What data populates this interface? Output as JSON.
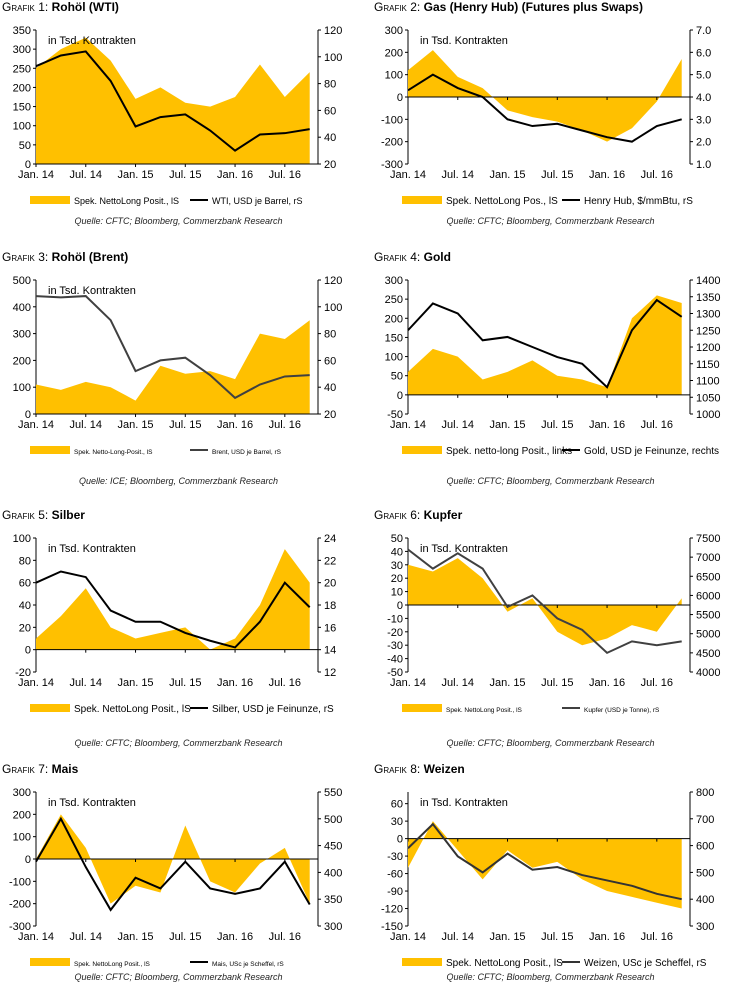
{
  "charts": [
    {
      "prefix": "Grafik",
      "number": "1:",
      "name": "Rohöl (WTI)",
      "unit_label": "in Tsd. Kontrakten",
      "source": "Quelle: CFTC; Bloomberg, Commerzbank Research",
      "legend_area": "Spek. NettoLong Posit., lS",
      "legend_line": "WTI, USD je Barrel, rS",
      "legend_font": 9,
      "colors": {
        "area": "#FFC000",
        "line": "#000000"
      }
    },
    {
      "prefix": "Grafik",
      "number": "2:",
      "name": "Gas (Henry Hub) (Futures plus Swaps)",
      "unit_label": "in Tsd. Kontrakten",
      "source": "Quelle: CFTC; Bloomberg, Commerzbank Research",
      "legend_area": "Spek. NettoLong Pos., lS",
      "legend_line": "Henry Hub, $/mmBtu, rS",
      "legend_font": 10,
      "colors": {
        "area": "#FFC000",
        "line": "#000000"
      }
    },
    {
      "prefix": "Grafik",
      "number": "3:",
      "name": "Rohöl (Brent)",
      "unit_label": "in Tsd. Kontrakten",
      "source": "Quelle: ICE; Bloomberg, Commerzbank Research",
      "legend_area": "Spek. Netto-Long-Posit., lS",
      "legend_line": "Brent, USD je Barrel, rS",
      "legend_font": 6.5,
      "colors": {
        "area": "#FFC000",
        "line": "#404040"
      }
    },
    {
      "prefix": "Grafik",
      "number": "4:",
      "name": "Gold",
      "unit_label": "",
      "source": "Quelle: CFTC; Bloomberg, Commerzbank Research",
      "legend_area": "Spek. netto-long Posit., links",
      "legend_line": "Gold, USD je Feinunze, rechts",
      "legend_font": 10,
      "colors": {
        "area": "#FFC000",
        "line": "#000000"
      }
    },
    {
      "prefix": "Grafik",
      "number": "5:",
      "name": "Silber",
      "unit_label": "in Tsd. Kontrakten",
      "source": "Quelle: CFTC; Bloomberg, Commerzbank Research",
      "legend_area": "Spek. NettoLong Posit., lS",
      "legend_line": "Silber, USD je Feinunze, rS",
      "legend_font": 10,
      "colors": {
        "area": "#FFC000",
        "line": "#000000"
      }
    },
    {
      "prefix": "Grafik",
      "number": "6:",
      "name": "Kupfer",
      "unit_label": "in Tsd. Kontrakten",
      "source": "Quelle: CFTC; Bloomberg, Commerzbank Research",
      "legend_area": "Spek. NettoLong Posit., lS",
      "legend_line": "Kupfer (USD je Tonne), rS",
      "legend_font": 6.5,
      "colors": {
        "area": "#FFC000",
        "line": "#404040"
      }
    },
    {
      "prefix": "Grafik",
      "number": "7:",
      "name": "Mais",
      "unit_label": "in Tsd. Kontrakten",
      "source": "Quelle: CFTC; Bloomberg, Commerzbank Research",
      "legend_area": "Spek. NettoLong Posit., lS",
      "legend_line": "Mais, USc je Scheffel, rS",
      "legend_font": 6.5,
      "colors": {
        "area": "#FFC000",
        "line": "#000000"
      }
    },
    {
      "prefix": "Grafik",
      "number": "8:",
      "name": "Weizen",
      "unit_label": "in Tsd. Kontrakten",
      "source": "Quelle: CFTC; Bloomberg, Commerzbank Research",
      "legend_area": "Spek. NettoLong Posit., lS",
      "legend_line": "Weizen, USc je Scheffel, rS",
      "legend_font": 10,
      "colors": {
        "area": "#FFC000",
        "line": "#333333"
      }
    }
  ],
  "chart_data": [
    {
      "type": "area",
      "title": "Grafik 1: Rohöl (WTI)",
      "x_ticks": [
        "Jan. 14",
        "Jul. 14",
        "Jan. 15",
        "Jul. 15",
        "Jan. 16",
        "Jul. 16"
      ],
      "x": [
        "2014-01",
        "2014-04",
        "2014-07",
        "2014-10",
        "2015-01",
        "2015-04",
        "2015-07",
        "2015-10",
        "2016-01",
        "2016-04",
        "2016-07",
        "2016-10"
      ],
      "y_left": {
        "label": "in Tsd. Kontrakten",
        "range": [
          0,
          350
        ],
        "ticks": [
          0,
          50,
          100,
          150,
          200,
          250,
          300,
          350
        ]
      },
      "y_right": {
        "range": [
          20,
          120
        ],
        "ticks": [
          20,
          40,
          60,
          80,
          100,
          120
        ]
      },
      "series": [
        {
          "name": "Spek. NettoLong Posit., lS",
          "axis": "left",
          "type": "area",
          "values": [
            250,
            300,
            330,
            270,
            170,
            200,
            160,
            150,
            175,
            260,
            175,
            240
          ]
        },
        {
          "name": "WTI, USD je Barrel, rS",
          "axis": "right",
          "type": "line",
          "values": [
            93,
            101,
            104,
            82,
            48,
            55,
            57,
            45,
            30,
            42,
            43,
            46
          ]
        }
      ]
    },
    {
      "type": "area",
      "title": "Grafik 2: Gas (Henry Hub) (Futures plus Swaps)",
      "x_ticks": [
        "Jan. 14",
        "Jul. 14",
        "Jan. 15",
        "Jul. 15",
        "Jan. 16",
        "Jul. 16"
      ],
      "x": [
        "2014-01",
        "2014-04",
        "2014-07",
        "2014-10",
        "2015-01",
        "2015-04",
        "2015-07",
        "2015-10",
        "2016-01",
        "2016-04",
        "2016-07",
        "2016-10"
      ],
      "y_left": {
        "label": "in Tsd. Kontrakten",
        "range": [
          -300,
          300
        ],
        "ticks": [
          -300,
          -200,
          -100,
          0,
          100,
          200,
          300
        ]
      },
      "y_right": {
        "range": [
          1.0,
          7.0
        ],
        "ticks": [
          1.0,
          2.0,
          3.0,
          4.0,
          5.0,
          6.0,
          7.0
        ]
      },
      "series": [
        {
          "name": "Spek. NettoLong Pos., lS",
          "axis": "left",
          "type": "area",
          "values": [
            120,
            210,
            90,
            40,
            -60,
            -90,
            -110,
            -150,
            -200,
            -140,
            -20,
            170
          ]
        },
        {
          "name": "Henry Hub, $/mmBtu, rS",
          "axis": "right",
          "type": "line",
          "values": [
            4.3,
            5.0,
            4.4,
            4.0,
            3.0,
            2.7,
            2.8,
            2.5,
            2.2,
            2.0,
            2.7,
            3.0
          ]
        }
      ]
    },
    {
      "type": "area",
      "title": "Grafik 3: Rohöl (Brent)",
      "x_ticks": [
        "Jan. 14",
        "Jul. 14",
        "Jan. 15",
        "Jul. 15",
        "Jan. 16",
        "Jul. 16"
      ],
      "x": [
        "2014-01",
        "2014-04",
        "2014-07",
        "2014-10",
        "2015-01",
        "2015-04",
        "2015-07",
        "2015-10",
        "2016-01",
        "2016-04",
        "2016-07",
        "2016-10"
      ],
      "y_left": {
        "label": "in Tsd. Kontrakten",
        "range": [
          0,
          500
        ],
        "ticks": [
          0,
          100,
          200,
          300,
          400,
          500
        ]
      },
      "y_right": {
        "range": [
          20,
          120
        ],
        "ticks": [
          20,
          40,
          60,
          80,
          100,
          120
        ]
      },
      "series": [
        {
          "name": "Spek. Netto-Long-Posit., lS",
          "axis": "left",
          "type": "area",
          "values": [
            110,
            90,
            120,
            100,
            50,
            180,
            150,
            160,
            130,
            300,
            280,
            350
          ]
        },
        {
          "name": "Brent, USD je Barrel, rS",
          "axis": "right",
          "type": "line",
          "values": [
            108,
            107,
            108,
            90,
            52,
            60,
            62,
            49,
            32,
            42,
            48,
            49
          ]
        }
      ]
    },
    {
      "type": "area",
      "title": "Grafik 4: Gold",
      "x_ticks": [
        "Jan. 14",
        "Jul. 14",
        "Jan. 15",
        "Jul. 15",
        "Jan. 16",
        "Jul. 16"
      ],
      "x": [
        "2014-01",
        "2014-04",
        "2014-07",
        "2014-10",
        "2015-01",
        "2015-04",
        "2015-07",
        "2015-10",
        "2016-01",
        "2016-04",
        "2016-07",
        "2016-10"
      ],
      "y_left": {
        "range": [
          -50,
          300
        ],
        "ticks": [
          -50,
          0,
          50,
          100,
          150,
          200,
          250,
          300
        ]
      },
      "y_right": {
        "range": [
          1000,
          1400
        ],
        "ticks": [
          1000,
          1050,
          1100,
          1150,
          1200,
          1250,
          1300,
          1350,
          1400
        ]
      },
      "series": [
        {
          "name": "Spek. netto-long Posit., links",
          "axis": "left",
          "type": "area",
          "values": [
            60,
            120,
            100,
            40,
            60,
            90,
            50,
            40,
            20,
            200,
            260,
            240
          ]
        },
        {
          "name": "Gold, USD je Feinunze, rechts",
          "axis": "right",
          "type": "line",
          "values": [
            1250,
            1330,
            1300,
            1220,
            1230,
            1200,
            1170,
            1150,
            1080,
            1250,
            1340,
            1290
          ]
        }
      ]
    },
    {
      "type": "area",
      "title": "Grafik 5: Silber",
      "x_ticks": [
        "Jan. 14",
        "Jul. 14",
        "Jan. 15",
        "Jul. 15",
        "Jan. 16",
        "Jul. 16"
      ],
      "x": [
        "2014-01",
        "2014-04",
        "2014-07",
        "2014-10",
        "2015-01",
        "2015-04",
        "2015-07",
        "2015-10",
        "2016-01",
        "2016-04",
        "2016-07",
        "2016-10"
      ],
      "y_left": {
        "label": "in Tsd. Kontrakten",
        "range": [
          -20,
          100
        ],
        "ticks": [
          -20,
          0,
          20,
          40,
          60,
          80,
          100
        ]
      },
      "y_right": {
        "range": [
          12,
          24
        ],
        "ticks": [
          12,
          14,
          16,
          18,
          20,
          22,
          24
        ]
      },
      "series": [
        {
          "name": "Spek. NettoLong Posit., lS",
          "axis": "left",
          "type": "area",
          "values": [
            10,
            30,
            55,
            20,
            10,
            15,
            20,
            0,
            10,
            40,
            90,
            60
          ]
        },
        {
          "name": "Silber, USD je Feinunze, rS",
          "axis": "right",
          "type": "line",
          "values": [
            20,
            21,
            20.5,
            17.5,
            16.5,
            16.5,
            15.5,
            14.8,
            14.2,
            16.5,
            20,
            17.8
          ]
        }
      ]
    },
    {
      "type": "area",
      "title": "Grafik 6: Kupfer",
      "x_ticks": [
        "Jan. 14",
        "Jul. 14",
        "Jan. 15",
        "Jul. 15",
        "Jan. 16",
        "Jul. 16"
      ],
      "x": [
        "2014-01",
        "2014-04",
        "2014-07",
        "2014-10",
        "2015-01",
        "2015-04",
        "2015-07",
        "2015-10",
        "2016-01",
        "2016-04",
        "2016-07",
        "2016-10"
      ],
      "y_left": {
        "label": "in Tsd. Kontrakten",
        "range": [
          -50,
          50
        ],
        "ticks": [
          -50,
          -40,
          -30,
          -20,
          -10,
          0,
          10,
          20,
          30,
          40,
          50
        ]
      },
      "y_right": {
        "range": [
          4000,
          7500
        ],
        "ticks": [
          4000,
          4500,
          5000,
          5500,
          6000,
          6500,
          7000,
          7500
        ]
      },
      "series": [
        {
          "name": "Spek. NettoLong Posit., lS",
          "axis": "left",
          "type": "area",
          "values": [
            30,
            25,
            35,
            20,
            -5,
            5,
            -20,
            -30,
            -25,
            -15,
            -20,
            5
          ]
        },
        {
          "name": "Kupfer (USD je Tonne), rS",
          "axis": "right",
          "type": "line",
          "values": [
            7200,
            6700,
            7100,
            6700,
            5700,
            6000,
            5400,
            5100,
            4500,
            4800,
            4700,
            4800
          ]
        }
      ]
    },
    {
      "type": "area",
      "title": "Grafik 7: Mais",
      "x_ticks": [
        "Jan. 14",
        "Jul. 14",
        "Jan. 15",
        "Jul. 15",
        "Jan. 16",
        "Jul. 16"
      ],
      "x": [
        "2014-01",
        "2014-04",
        "2014-07",
        "2014-10",
        "2015-01",
        "2015-04",
        "2015-07",
        "2015-10",
        "2016-01",
        "2016-04",
        "2016-07",
        "2016-10"
      ],
      "y_left": {
        "label": "in Tsd. Kontrakten",
        "range": [
          -300,
          300
        ],
        "ticks": [
          -300,
          -200,
          -100,
          0,
          100,
          200,
          300
        ]
      },
      "y_right": {
        "range": [
          300,
          550
        ],
        "ticks": [
          300,
          350,
          400,
          450,
          500,
          550
        ]
      },
      "series": [
        {
          "name": "Spek. NettoLong Posit., lS",
          "axis": "left",
          "type": "area",
          "values": [
            0,
            200,
            50,
            -200,
            -120,
            -150,
            150,
            -100,
            -150,
            -20,
            50,
            -200
          ]
        },
        {
          "name": "Mais, USc je Scheffel, rS",
          "axis": "right",
          "type": "line",
          "values": [
            420,
            500,
            410,
            330,
            390,
            370,
            420,
            370,
            360,
            370,
            420,
            340
          ]
        }
      ]
    },
    {
      "type": "area",
      "title": "Grafik 8: Weizen",
      "x_ticks": [
        "Jan. 14",
        "Jul. 14",
        "Jan. 15",
        "Jul. 15",
        "Jan. 16",
        "Jul. 16"
      ],
      "x": [
        "2014-01",
        "2014-04",
        "2014-07",
        "2014-10",
        "2015-01",
        "2015-04",
        "2015-07",
        "2015-10",
        "2016-01",
        "2016-04",
        "2016-07",
        "2016-10"
      ],
      "y_left": {
        "label": "in Tsd. Kontrakten",
        "range": [
          -150,
          80
        ],
        "ticks": [
          -150,
          -120,
          -90,
          -60,
          -30,
          0,
          30,
          60
        ]
      },
      "y_right": {
        "range": [
          300,
          800
        ],
        "ticks": [
          300,
          400,
          500,
          600,
          700,
          800
        ]
      },
      "series": [
        {
          "name": "Spek. NettoLong Posit., lS",
          "axis": "left",
          "type": "area",
          "values": [
            -50,
            30,
            -20,
            -70,
            -20,
            -50,
            -40,
            -70,
            -90,
            -100,
            -110,
            -120
          ]
        },
        {
          "name": "Weizen, USc je Scheffel, rS",
          "axis": "right",
          "type": "line",
          "values": [
            590,
            680,
            560,
            500,
            570,
            510,
            520,
            490,
            470,
            450,
            420,
            400
          ]
        }
      ]
    }
  ]
}
